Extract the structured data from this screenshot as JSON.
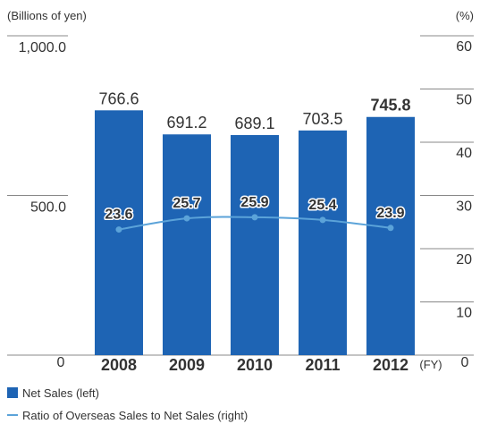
{
  "chart_data": {
    "type": "bar",
    "categories": [
      "2008",
      "2009",
      "2010",
      "2011",
      "2012"
    ],
    "x_unit": "(FY)",
    "left_axis": {
      "unit_label": "(Billions of yen)",
      "range": [
        0,
        1000
      ],
      "tick_values": [
        0,
        500,
        1000
      ],
      "tick_labels": [
        "0",
        "500.0",
        "1,000.0"
      ]
    },
    "right_axis": {
      "unit_label": "(%)",
      "range": [
        0,
        60
      ],
      "tick_values": [
        0,
        10,
        20,
        30,
        40,
        50,
        60
      ],
      "tick_labels": [
        "0",
        "10",
        "20",
        "30",
        "40",
        "50",
        "60"
      ]
    },
    "series": [
      {
        "name": "Net Sales (left)",
        "kind": "bar",
        "axis": "left",
        "color": "#1e64b4",
        "values": [
          766.6,
          691.2,
          689.1,
          703.5,
          745.8
        ],
        "labels": [
          "766.6",
          "691.2",
          "689.1",
          "703.5",
          "745.8"
        ]
      },
      {
        "name": "Ratio of Overseas Sales to Net Sales (right)",
        "kind": "line",
        "axis": "right",
        "color": "#5ba3d9",
        "values": [
          23.6,
          25.7,
          25.9,
          25.4,
          23.9
        ],
        "labels": [
          "23.6",
          "25.7",
          "25.9",
          "25.4",
          "23.9"
        ]
      }
    ],
    "highlight_category": "2012",
    "legend_position": "bottom-left"
  }
}
